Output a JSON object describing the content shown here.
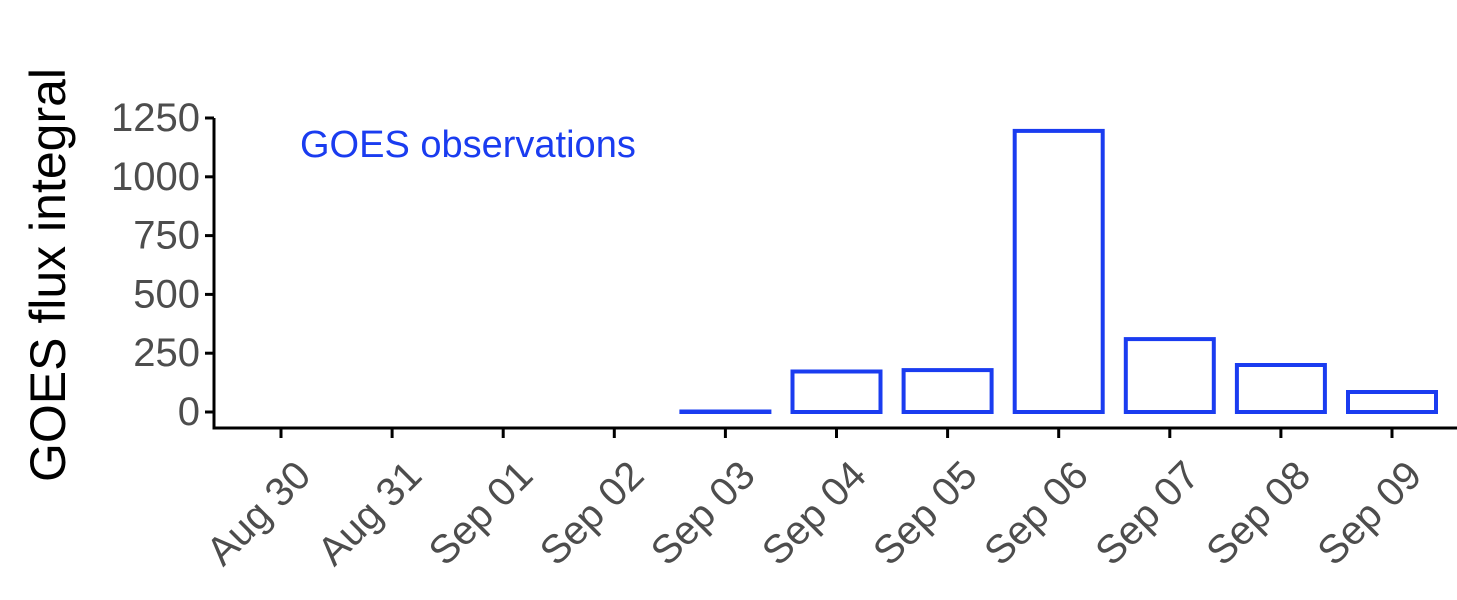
{
  "chart_data": {
    "type": "bar",
    "title": "",
    "xlabel": "",
    "ylabel": "GOES flux integral",
    "annotation": "GOES observations",
    "categories": [
      "Aug 30",
      "Aug 31",
      "Sep 01",
      "Sep 02",
      "Sep 03",
      "Sep 04",
      "Sep 05",
      "Sep 06",
      "Sep 07",
      "Sep 08",
      "Sep 09"
    ],
    "values": [
      0,
      0,
      0,
      0,
      2,
      172,
      178,
      1195,
      310,
      200,
      85
    ],
    "ylim": [
      0,
      1250
    ],
    "yticks": [
      0,
      250,
      500,
      750,
      1000,
      1250
    ],
    "ytick_labels": [
      "0",
      "250",
      "500",
      "750",
      "1000",
      "1250"
    ],
    "grid": false,
    "bar_style": "outline",
    "colors": {
      "bar_outline": "#1a3cf0",
      "annotation": "#1a3cf0",
      "axis": "#000000",
      "tick_label": "#4d4d4d"
    }
  }
}
